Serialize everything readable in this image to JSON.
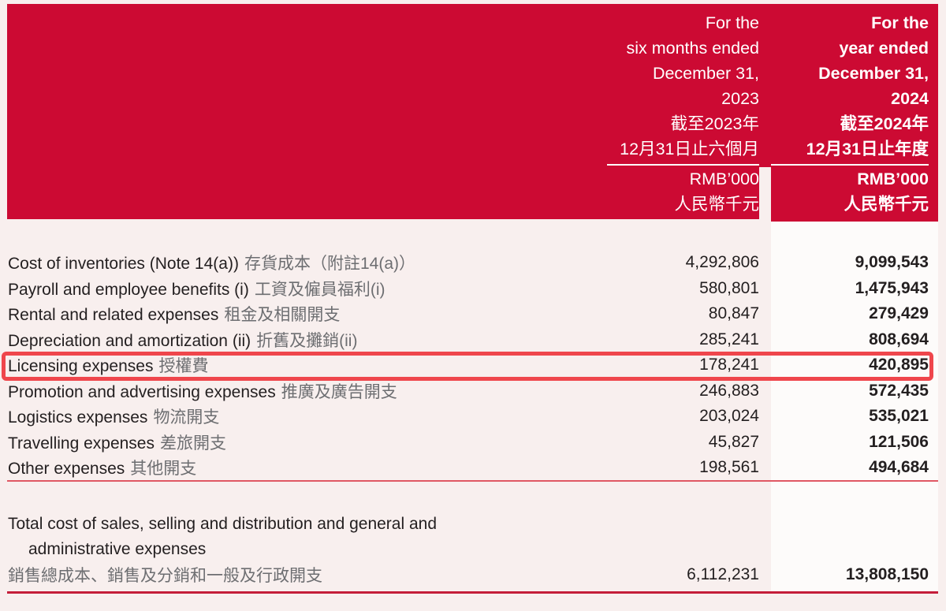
{
  "page": {
    "background": "#f8efee",
    "accent_red": "#cc0a33",
    "band_white": "#fdfbfa",
    "text_color": "#231f20",
    "chinese_text_color": "#6d6e71"
  },
  "header": {
    "col_2023": {
      "lines": [
        "For the",
        "six months ended",
        "December 31,",
        "2023",
        "截至2023年",
        "12月31日止六個月"
      ],
      "unit": "RMB’000",
      "unit_zh": "人民幣千元"
    },
    "col_2024": {
      "lines": [
        "For the",
        "year ended",
        "December 31,",
        "2024",
        "截至2024年",
        "12月31日止年度"
      ],
      "unit": "RMB’000",
      "unit_zh": "人民幣千元"
    }
  },
  "table": {
    "rows": [
      {
        "en": "Cost of inventories (Note 14(a))",
        "zh": "存貨成本（附註14(a)）",
        "v2023": "4,292,806",
        "v2024": "9,099,543"
      },
      {
        "en": "Payroll and employee benefits (i)",
        "zh": "工資及僱員福利(i)",
        "v2023": "580,801",
        "v2024": "1,475,943"
      },
      {
        "en": "Rental and related expenses",
        "zh": "租金及相關開支",
        "v2023": "80,847",
        "v2024": "279,429"
      },
      {
        "en": "Depreciation and amortization (ii)",
        "zh": "折舊及攤銷(ii)",
        "v2023": "285,241",
        "v2024": "808,694"
      },
      {
        "en": "Licensing expenses",
        "zh": "授權費",
        "v2023": "178,241",
        "v2024": "420,895"
      },
      {
        "en": "Promotion and advertising expenses",
        "zh": "推廣及廣告開支",
        "v2023": "246,883",
        "v2024": "572,435"
      },
      {
        "en": "Logistics expenses",
        "zh": "物流開支",
        "v2023": "203,024",
        "v2024": "535,021"
      },
      {
        "en": "Travelling expenses",
        "zh": "差旅開支",
        "v2023": "45,827",
        "v2024": "121,506"
      },
      {
        "en": "Other expenses",
        "zh": "其他開支",
        "v2023": "198,561",
        "v2024": "494,684"
      }
    ],
    "total": {
      "en_line1": "Total cost of sales, selling and distribution and general and",
      "en_line2": "administrative expenses",
      "zh": "銷售總成本、銷售及分銷和一般及行政開支",
      "v2023": "6,112,231",
      "v2024": "13,808,150"
    }
  },
  "highlight": {
    "row_index": 4,
    "label": "Licensing expenses 授權費",
    "border_color": "#ef464c"
  }
}
